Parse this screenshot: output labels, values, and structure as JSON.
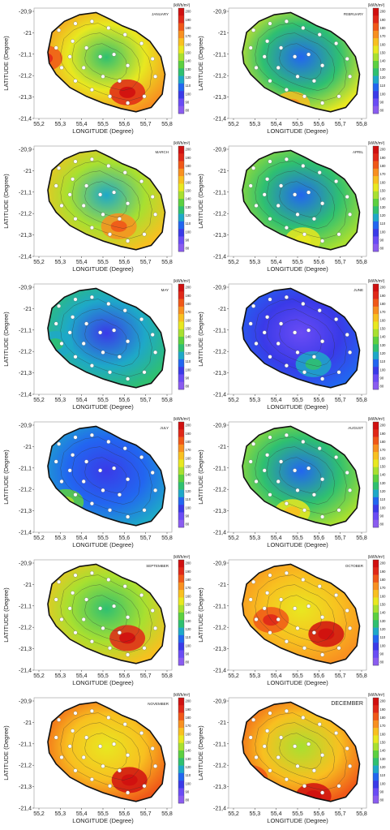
{
  "colors": {
    "scale": [
      "#8a5cf0",
      "#6a4cf5",
      "#3a3ae8",
      "#2266f0",
      "#1ea8c8",
      "#2fc070",
      "#5cd040",
      "#a8e030",
      "#e8e820",
      "#f8c020",
      "#f89020",
      "#f05818",
      "#e02818",
      "#d01010"
    ],
    "station": "#ffffff",
    "outline": "#111111"
  },
  "chart_data": [
    {
      "type": "heatmap",
      "title": "JANUARY",
      "xlabel": "LONGITUDE (Degree)",
      "ylabel": "LATITUDE (Degree)",
      "unit": "(kWh/m²)",
      "xlim": [
        55.2,
        55.85
      ],
      "ylim": [
        -21.4,
        -20.85
      ],
      "x_ticks": [
        "55,2",
        "55,3",
        "55,4",
        "55,5",
        "55,6",
        "55,7",
        "55,8"
      ],
      "y_ticks": [
        "-20,9",
        "-21",
        "-21,1",
        "-21,2",
        "-21,3",
        "-21,4"
      ],
      "colorbar_ticks": [
        "200",
        "190",
        "180",
        "170",
        "160",
        "150",
        "140",
        "130",
        "120",
        "110",
        "100",
        "90",
        "80"
      ],
      "coast_level": 175,
      "center_level": 130,
      "hot_spots": [
        {
          "lon": 55.64,
          "lat": -21.27,
          "level": 190
        },
        {
          "lon": 55.25,
          "lat": -21.1,
          "level": 185
        }
      ]
    },
    {
      "type": "heatmap",
      "title": "FEBRUARY",
      "xlabel": "LONGITUDE (Degree)",
      "ylabel": "LATITUDE (Degree)",
      "unit": "(kWh/m²)",
      "xlim": [
        55.2,
        55.85
      ],
      "ylim": [
        -21.4,
        -20.85
      ],
      "x_ticks": [
        "55,2",
        "55,3",
        "55,4",
        "55,5",
        "55,6",
        "55,7",
        "55,8"
      ],
      "y_ticks": [
        "-20,9",
        "-21",
        "-21,1",
        "-21,2",
        "-21,3",
        "-21,4"
      ],
      "colorbar_ticks": [
        "200",
        "190",
        "180",
        "170",
        "160",
        "150",
        "140",
        "130",
        "120",
        "110",
        "100",
        "90",
        "80"
      ],
      "coast_level": 150,
      "center_level": 110,
      "hot_spots": [
        {
          "lon": 55.5,
          "lat": -21.33,
          "level": 165
        }
      ]
    },
    {
      "type": "heatmap",
      "title": "MARCH",
      "xlabel": "LONGITUDE (Degree)",
      "ylabel": "LATITUDE (Degree)",
      "unit": "(kWh/m²)",
      "xlim": [
        55.2,
        55.85
      ],
      "ylim": [
        -21.4,
        -20.85
      ],
      "x_ticks": [
        "55,2",
        "55,3",
        "55,4",
        "55,5",
        "55,6",
        "55,7",
        "55,8"
      ],
      "y_ticks": [
        "-20,9",
        "-21",
        "-21,1",
        "-21,2",
        "-21,3",
        "-21,4"
      ],
      "colorbar_ticks": [
        "200",
        "190",
        "180",
        "170",
        "160",
        "150",
        "140",
        "130",
        "120",
        "110",
        "100",
        "90",
        "80"
      ],
      "coast_level": 160,
      "center_level": 120,
      "hot_spots": [
        {
          "lon": 55.6,
          "lat": -21.25,
          "level": 175
        }
      ]
    },
    {
      "type": "heatmap",
      "title": "APRIL",
      "xlabel": "LONGITUDE (Degree)",
      "ylabel": "LATITUDE (Degree)",
      "unit": "(kWh/m²)",
      "xlim": [
        55.2,
        55.85
      ],
      "ylim": [
        -21.4,
        -20.85
      ],
      "x_ticks": [
        "55,2",
        "55,3",
        "55,4",
        "55,5",
        "55,6",
        "55,7",
        "55,8"
      ],
      "y_ticks": [
        "-20,9",
        "-21",
        "-21,1",
        "-21,2",
        "-21,3",
        "-21,4"
      ],
      "colorbar_ticks": [
        "200",
        "190",
        "180",
        "170",
        "160",
        "150",
        "140",
        "130",
        "120",
        "110",
        "100",
        "90",
        "80"
      ],
      "coast_level": 140,
      "center_level": 105,
      "hot_spots": [
        {
          "lon": 55.55,
          "lat": -21.32,
          "level": 150
        }
      ]
    },
    {
      "type": "heatmap",
      "title": "MAY",
      "xlabel": "LONGITUDE (Degree)",
      "ylabel": "LATITUDE (Degree)",
      "unit": "(kWh/m²)",
      "xlim": [
        55.2,
        55.85
      ],
      "ylim": [
        -21.4,
        -20.85
      ],
      "x_ticks": [
        "55,2",
        "55,3",
        "55,4",
        "55,5",
        "55,6",
        "55,7",
        "55,8"
      ],
      "y_ticks": [
        "-20,9",
        "-21",
        "-21,1",
        "-21,2",
        "-21,3",
        "-21,4"
      ],
      "colorbar_ticks": [
        "200",
        "190",
        "180",
        "170",
        "160",
        "150",
        "140",
        "130",
        "120",
        "110",
        "100",
        "90",
        "80"
      ],
      "coast_level": 125,
      "center_level": 100,
      "hot_spots": [
        {
          "lon": 55.3,
          "lat": -21.15,
          "level": 115
        }
      ]
    },
    {
      "type": "heatmap",
      "title": "JUNE",
      "xlabel": "LONGITUDE (Degree)",
      "ylabel": "LATITUDE (Degree)",
      "unit": "(kWh/m²)",
      "xlim": [
        55.2,
        55.85
      ],
      "ylim": [
        -21.4,
        -20.85
      ],
      "x_ticks": [
        "55,2",
        "55,3",
        "55,4",
        "55,5",
        "55,6",
        "55,7",
        "55,8"
      ],
      "y_ticks": [
        "-20,9",
        "-21",
        "-21,1",
        "-21,2",
        "-21,3",
        "-21,4"
      ],
      "colorbar_ticks": [
        "200",
        "190",
        "180",
        "170",
        "160",
        "150",
        "140",
        "130",
        "120",
        "110",
        "100",
        "90",
        "80"
      ],
      "coast_level": 105,
      "center_level": 92,
      "hot_spots": [
        {
          "lon": 55.6,
          "lat": -21.25,
          "level": 120
        }
      ]
    },
    {
      "type": "heatmap",
      "title": "JULY",
      "xlabel": "LONGITUDE (Degree)",
      "ylabel": "LATITUDE (Degree)",
      "unit": "(kWh/m²)",
      "xlim": [
        55.2,
        55.85
      ],
      "ylim": [
        -21.4,
        -20.85
      ],
      "x_ticks": [
        "55,2",
        "55,3",
        "55,4",
        "55,5",
        "55,6",
        "55,7",
        "55,8"
      ],
      "y_ticks": [
        "-20,9",
        "-21",
        "-21,1",
        "-21,2",
        "-21,3",
        "-21,4"
      ],
      "colorbar_ticks": [
        "200",
        "190",
        "180",
        "170",
        "160",
        "150",
        "140",
        "130",
        "120",
        "110",
        "100",
        "90",
        "80"
      ],
      "coast_level": 120,
      "center_level": 98,
      "hot_spots": [
        {
          "lon": 55.35,
          "lat": -21.25,
          "level": 135
        }
      ]
    },
    {
      "type": "heatmap",
      "title": "AUGUST",
      "xlabel": "LONGITUDE (Degree)",
      "ylabel": "LATITUDE (Degree)",
      "unit": "(kWh/m²)",
      "xlim": [
        55.2,
        55.85
      ],
      "ylim": [
        -21.4,
        -20.85
      ],
      "x_ticks": [
        "55,2",
        "55,3",
        "55,4",
        "55,5",
        "55,6",
        "55,7",
        "55,8"
      ],
      "y_ticks": [
        "-20,9",
        "-21",
        "-21,1",
        "-21,2",
        "-21,3",
        "-21,4"
      ],
      "colorbar_ticks": [
        "200",
        "190",
        "180",
        "170",
        "160",
        "150",
        "140",
        "130",
        "120",
        "110",
        "100",
        "90",
        "80"
      ],
      "coast_level": 145,
      "center_level": 110,
      "hot_spots": [
        {
          "lon": 55.5,
          "lat": -21.3,
          "level": 155
        }
      ]
    },
    {
      "type": "heatmap",
      "title": "SEPTEMBER",
      "xlabel": "LONGITUDE (Degree)",
      "ylabel": "LATITUDE (Degree)",
      "unit": "(kWh/m²)",
      "xlim": [
        55.2,
        55.85
      ],
      "ylim": [
        -21.4,
        -20.85
      ],
      "x_ticks": [
        "55,2",
        "55,3",
        "55,4",
        "55,5",
        "55,6",
        "55,7",
        "55,8"
      ],
      "y_ticks": [
        "-20,9",
        "-21",
        "-21,1",
        "-21,2",
        "-21,3",
        "-21,4"
      ],
      "colorbar_ticks": [
        "200",
        "190",
        "180",
        "170",
        "160",
        "150",
        "140",
        "130",
        "120",
        "110",
        "100",
        "90",
        "80"
      ],
      "coast_level": 165,
      "center_level": 125,
      "hot_spots": [
        {
          "lon": 55.64,
          "lat": -21.24,
          "level": 190
        }
      ]
    },
    {
      "type": "heatmap",
      "title": "OCTOBER",
      "xlabel": "LONGITUDE (Degree)",
      "ylabel": "LATITUDE (Degree)",
      "unit": "(kWh/m²)",
      "xlim": [
        55.2,
        55.85
      ],
      "ylim": [
        -21.4,
        -20.85
      ],
      "x_ticks": [
        "55,2",
        "55,3",
        "55,4",
        "55,5",
        "55,6",
        "55,7",
        "55,8"
      ],
      "y_ticks": [
        "-20,9",
        "-21",
        "-21,1",
        "-21,2",
        "-21,3",
        "-21,4"
      ],
      "colorbar_ticks": [
        "200",
        "190",
        "180",
        "170",
        "160",
        "150",
        "140",
        "130",
        "120",
        "110",
        "100",
        "90",
        "80"
      ],
      "coast_level": 172,
      "center_level": 150,
      "hot_spots": [
        {
          "lon": 55.66,
          "lat": -21.22,
          "level": 198
        },
        {
          "lon": 55.4,
          "lat": -21.15,
          "level": 185
        }
      ]
    },
    {
      "type": "heatmap",
      "title": "NOVEMBER",
      "xlabel": "LONGITUDE (Degree)",
      "ylabel": "LATITUDE (Degree)",
      "unit": "(kWh/m²)",
      "xlim": [
        55.2,
        55.85
      ],
      "ylim": [
        -21.4,
        -20.85
      ],
      "x_ticks": [
        "55,2",
        "55,3",
        "55,4",
        "55,5",
        "55,6",
        "55,7",
        "55,8"
      ],
      "y_ticks": [
        "-20,9",
        "-21",
        "-21,1",
        "-21,2",
        "-21,3",
        "-21,4"
      ],
      "colorbar_ticks": [
        "200",
        "190",
        "180",
        "170",
        "160",
        "150",
        "140",
        "130",
        "120",
        "110",
        "100",
        "90",
        "80"
      ],
      "coast_level": 185,
      "center_level": 150,
      "hot_spots": [
        {
          "lon": 55.65,
          "lat": -21.26,
          "level": 200
        }
      ]
    },
    {
      "type": "heatmap",
      "title": "DECEMBER",
      "xlabel": "LONGITUDE (Degree)",
      "ylabel": "LATITUDE (Degree)",
      "unit": "(kWh/m²)",
      "xlim": [
        55.2,
        55.85
      ],
      "ylim": [
        -21.4,
        -20.85
      ],
      "x_ticks": [
        "55,2",
        "55,3",
        "55,4",
        "55,5",
        "55,6",
        "55,7",
        "55,8"
      ],
      "y_ticks": [
        "-20,9",
        "-21",
        "-21,1",
        "-21,2",
        "-21,3",
        "-21,4"
      ],
      "colorbar_ticks": [
        "200",
        "190",
        "180",
        "170",
        "160",
        "150",
        "140",
        "130",
        "120",
        "110",
        "100",
        "90",
        "80"
      ],
      "coast_level": 185,
      "center_level": 145,
      "hot_spots": [
        {
          "lon": 55.6,
          "lat": -21.34,
          "level": 200
        },
        {
          "lon": 55.3,
          "lat": -21.25,
          "level": 185
        }
      ]
    }
  ]
}
